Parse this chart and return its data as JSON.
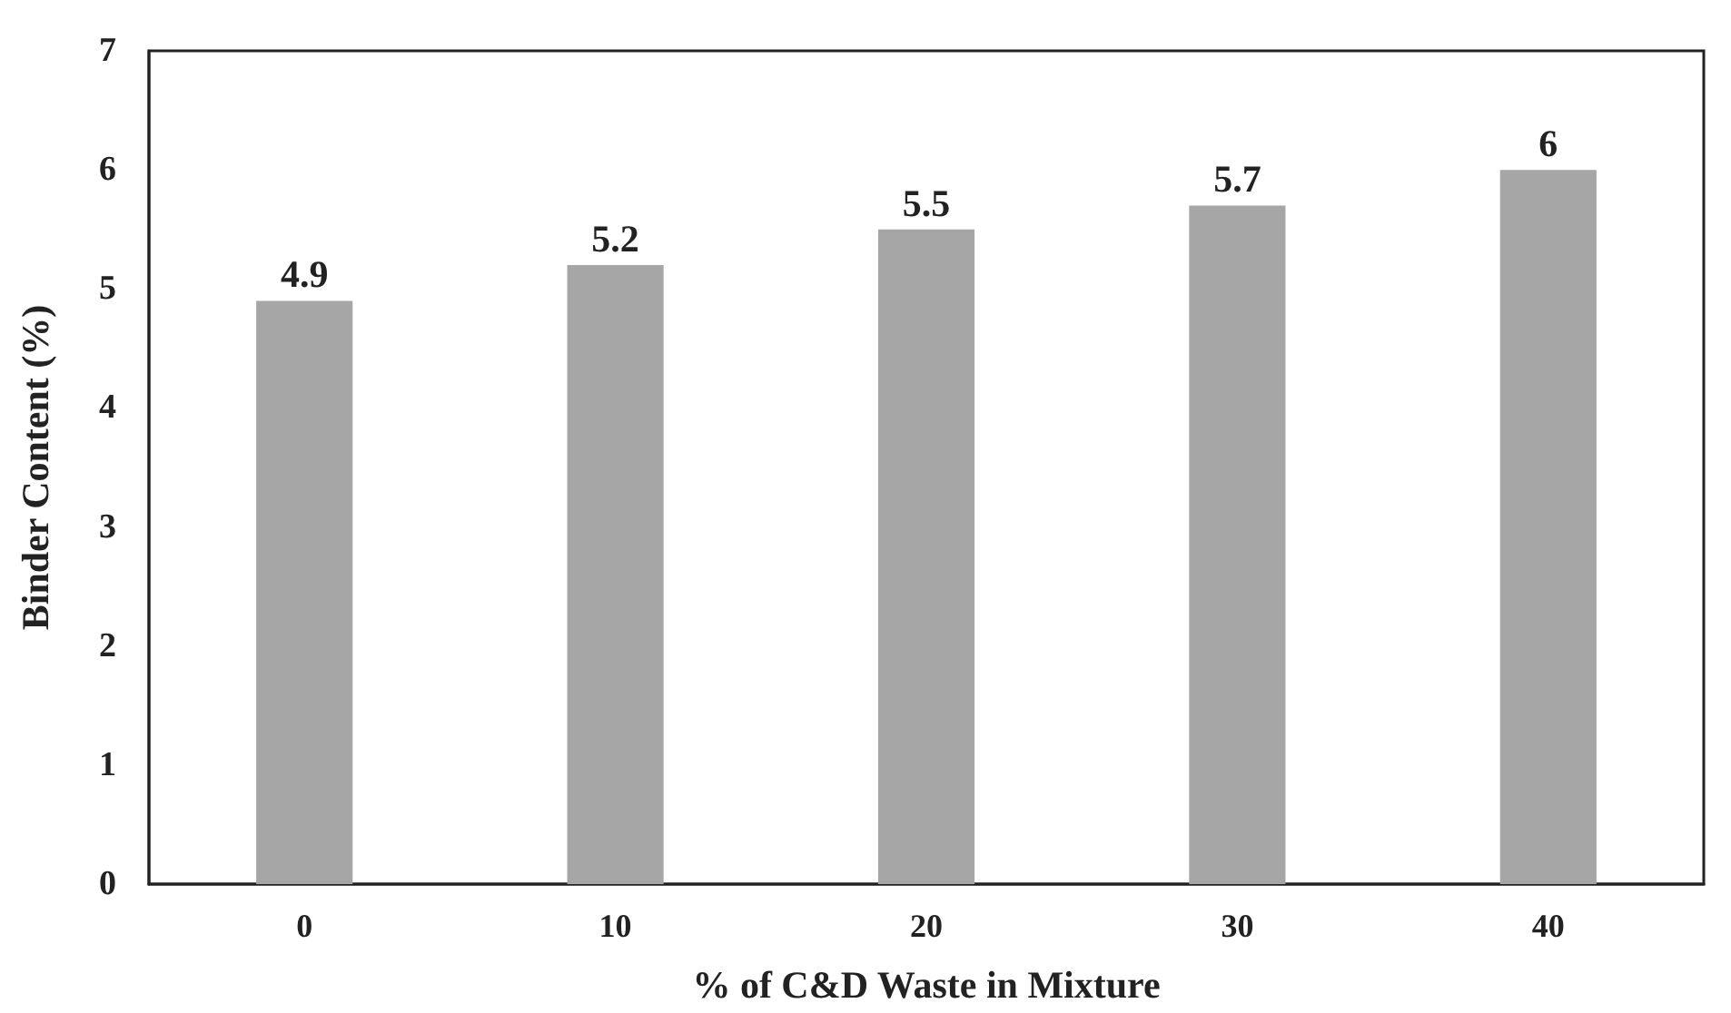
{
  "chart_data": {
    "type": "bar",
    "xlabel": "% of C&D Waste in Mixture",
    "ylabel": "Binder Content (%)",
    "categories": [
      "0",
      "10",
      "20",
      "30",
      "40"
    ],
    "values": [
      4.9,
      5.2,
      5.5,
      5.7,
      6
    ],
    "color": "#a6a6a6",
    "ylim": [
      0,
      7
    ],
    "yticks": [
      0,
      1,
      2,
      3,
      4,
      5,
      6,
      7
    ],
    "data_labels": true,
    "grid": false
  }
}
